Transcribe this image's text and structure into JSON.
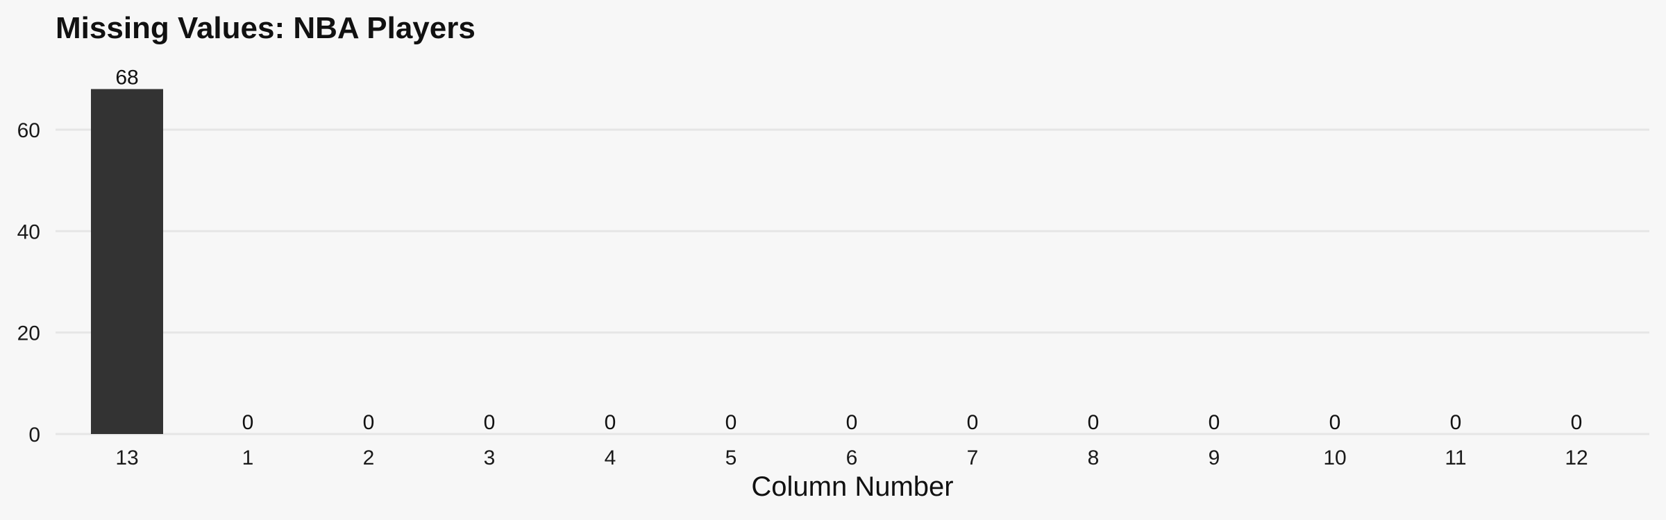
{
  "chart_data": {
    "type": "bar",
    "title": "Missing Values: NBA Players",
    "xlabel": "Column Number",
    "ylabel": "",
    "categories": [
      "13",
      "1",
      "2",
      "3",
      "4",
      "5",
      "6",
      "7",
      "8",
      "9",
      "10",
      "11",
      "12"
    ],
    "values": [
      68,
      0,
      0,
      0,
      0,
      0,
      0,
      0,
      0,
      0,
      0,
      0,
      0
    ],
    "ylim": [
      0,
      72
    ],
    "yticks": [
      0,
      20,
      40,
      60
    ],
    "grid": true,
    "legend": "none",
    "bar_color": "#333333",
    "background_color": "#f7f7f7"
  }
}
